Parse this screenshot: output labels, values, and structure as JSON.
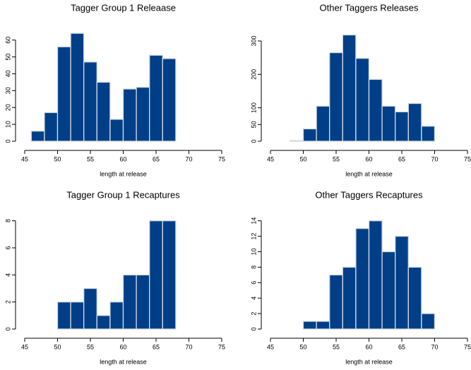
{
  "chart_data": [
    {
      "type": "histogram",
      "title": "Tagger Group 1 Releaase",
      "xlabel": "length at release",
      "bins": [
        46,
        48,
        50,
        52,
        54,
        56,
        58,
        60,
        62,
        64,
        66,
        68,
        70,
        72,
        74
      ],
      "values": [
        6,
        17,
        56,
        64,
        47,
        35,
        13,
        31,
        32,
        51,
        49,
        0,
        0,
        0
      ],
      "color": "#003f87",
      "xlim": [
        45,
        75
      ],
      "ylim": [
        0,
        67
      ],
      "xticks": [
        45,
        50,
        55,
        60,
        65,
        70,
        75
      ],
      "yticks": [
        0,
        10,
        20,
        30,
        40,
        50,
        60
      ]
    },
    {
      "type": "histogram",
      "title": "Other Taggers Releases",
      "xlabel": "length at release",
      "bins": [
        48,
        50,
        52,
        54,
        56,
        58,
        60,
        62,
        64,
        66,
        68,
        70,
        72,
        74
      ],
      "values": [
        2,
        37,
        105,
        265,
        318,
        248,
        185,
        105,
        88,
        113,
        45,
        0,
        0
      ],
      "color": "#003f87",
      "xlim": [
        45,
        75
      ],
      "ylim": [
        0,
        338
      ],
      "xticks": [
        45,
        50,
        55,
        60,
        65,
        70,
        75
      ],
      "yticks": [
        0,
        50,
        100,
        200,
        300
      ]
    },
    {
      "type": "histogram",
      "title": "Tagger Group 1 Recaptures",
      "xlabel": "length at release",
      "bins": [
        50,
        52,
        54,
        56,
        58,
        60,
        62,
        64,
        66,
        68
      ],
      "values": [
        2,
        2,
        3,
        1,
        2,
        4,
        4,
        8,
        8
      ],
      "color": "#003f87",
      "xlim": [
        45,
        75
      ],
      "ylim": [
        0,
        8.4
      ],
      "xticks": [
        45,
        50,
        55,
        60,
        65,
        70,
        75
      ],
      "yticks": [
        0,
        2,
        4,
        6,
        8
      ]
    },
    {
      "type": "histogram",
      "title": "Other Taggers Recaptures",
      "xlabel": "length at release",
      "bins": [
        50,
        52,
        54,
        56,
        58,
        60,
        62,
        64,
        66,
        68,
        70
      ],
      "values": [
        1,
        1,
        7,
        8,
        13,
        14,
        10,
        12,
        8,
        2
      ],
      "color": "#003f87",
      "xlim": [
        45,
        75
      ],
      "ylim": [
        0,
        14.7
      ],
      "xticks": [
        45,
        50,
        55,
        60,
        65,
        70,
        75
      ],
      "yticks": [
        0,
        2,
        4,
        6,
        8,
        10,
        12,
        14
      ]
    }
  ]
}
